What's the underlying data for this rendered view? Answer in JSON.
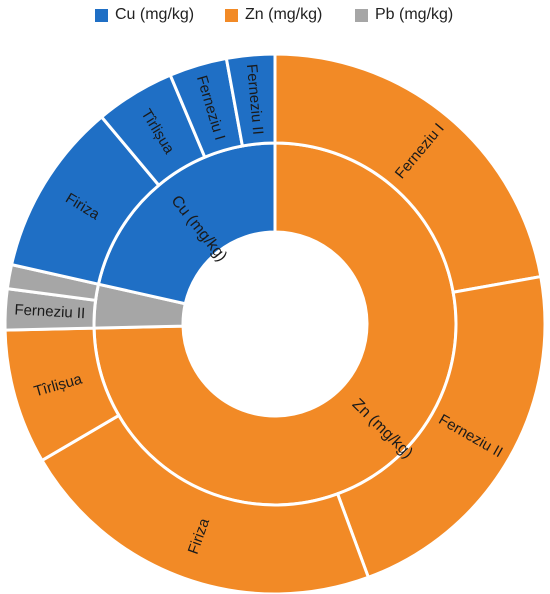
{
  "chart_data": {
    "type": "sunburst",
    "title": "",
    "legend_position": "top",
    "series": [
      {
        "name": "Cu (mg/kg)",
        "color": "#1f6fc5",
        "children": [
          {
            "name": "Firiza",
            "value": 36
          },
          {
            "name": "Tîrlișua",
            "value": 16.5
          },
          {
            "name": "Ferneziu I",
            "value": 12
          },
          {
            "name": "Ferneziu II",
            "value": 10
          }
        ]
      },
      {
        "name": "Zn (mg/kg)",
        "color": "#f28a26",
        "children": [
          {
            "name": "Ferneziu I",
            "value": 77
          },
          {
            "name": "Ferneziu II",
            "value": 77
          },
          {
            "name": "Firiza",
            "value": 77
          },
          {
            "name": "Tîrlișua",
            "value": 28
          }
        ]
      },
      {
        "name": "Pb (mg/kg)",
        "color": "#a6a6a6",
        "children": [
          {
            "name": "Ferneziu II",
            "value": 8.5
          },
          {
            "name": "",
            "value": 5
          }
        ]
      }
    ]
  }
}
